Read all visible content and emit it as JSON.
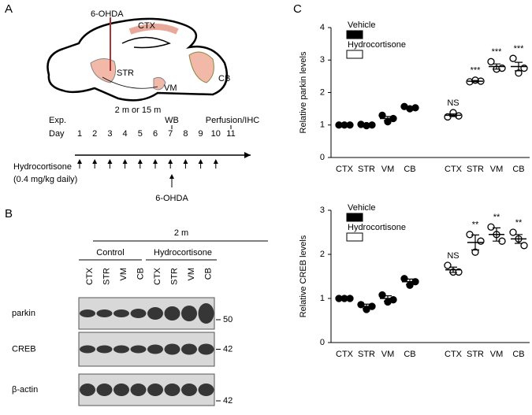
{
  "panel_labels": [
    "A",
    "B",
    "C"
  ],
  "diagram": {
    "brain_labels": {
      "injection": "6-OHDA",
      "ctx": "CTX",
      "str": "STR",
      "vm": "VM",
      "cb": "CB"
    },
    "age": "2 m or 15 m",
    "exp_label": "Exp.",
    "wb": "WB",
    "perfusion": "Perfusion/IHC",
    "day_label": "Day",
    "days": [
      "1",
      "2",
      "3",
      "4",
      "5",
      "6",
      "7",
      "8",
      "9",
      "10",
      "11"
    ],
    "treatment": "Hydrocortisone",
    "dose": "(0.4 mg/kg daily)",
    "lesion": "6-OHDA"
  },
  "blot": {
    "age": "2 m",
    "groups": [
      "Control",
      "Hydrocortisone"
    ],
    "lanes": [
      "CTX",
      "STR",
      "VM",
      "CB",
      "CTX",
      "STR",
      "VM",
      "CB"
    ],
    "rows": [
      {
        "label": "parkin",
        "marker": "50"
      },
      {
        "label": "CREB",
        "marker": "42"
      },
      {
        "label": "β-actin",
        "marker": "42"
      }
    ]
  },
  "chart_data": [
    {
      "type": "dot",
      "ylabel": "Relative parkin levels",
      "categories": [
        "CTX",
        "STR",
        "VM",
        "CB",
        "CTX",
        "STR",
        "VM",
        "CB"
      ],
      "ylim": [
        0,
        4
      ],
      "yticks": [
        0,
        1,
        2,
        3,
        4
      ],
      "series": [
        {
          "name": "Vehicle",
          "color": "#000000",
          "filled": true,
          "points": [
            [
              1,
              1,
              1
            ],
            [
              1.02,
              0.98,
              1.0
            ],
            [
              1.3,
              1.1,
              1.2
            ],
            [
              1.57,
              1.5,
              1.53
            ],
            null,
            null,
            null,
            null
          ],
          "means": [
            1,
            1,
            1.2,
            1.53,
            null,
            null,
            null,
            null
          ],
          "errors": [
            0.01,
            0.02,
            0.06,
            0.02,
            null,
            null,
            null,
            null
          ]
        },
        {
          "name": "Hydrocortisone",
          "color": "#000000",
          "filled": false,
          "points": [
            null,
            null,
            null,
            null,
            [
              1.25,
              1.38,
              1.28
            ],
            [
              2.33,
              2.38,
              2.35
            ],
            [
              2.95,
              2.72,
              2.75
            ],
            [
              3.05,
              2.6,
              2.75
            ]
          ],
          "means": [
            null,
            null,
            null,
            null,
            1.3,
            2.35,
            2.8,
            2.8
          ],
          "errors": [
            null,
            null,
            null,
            null,
            0.04,
            0.02,
            0.08,
            0.13
          ]
        }
      ],
      "annotations": [
        null,
        null,
        null,
        null,
        "NS",
        "***",
        "***",
        "***"
      ]
    },
    {
      "type": "dot",
      "ylabel": "Relative CREB levels",
      "categories": [
        "CTX",
        "STR",
        "VM",
        "CB",
        "CTX",
        "STR",
        "VM",
        "CB"
      ],
      "ylim": [
        0,
        3
      ],
      "yticks": [
        0,
        1,
        2,
        3
      ],
      "series": [
        {
          "name": "Vehicle",
          "color": "#000000",
          "filled": true,
          "points": [
            [
              1,
              1,
              1
            ],
            [
              0.86,
              0.75,
              0.82
            ],
            [
              1.08,
              0.92,
              0.97
            ],
            [
              1.45,
              1.3,
              1.38
            ],
            null,
            null,
            null,
            null
          ],
          "means": [
            1,
            0.82,
            1.0,
            1.38,
            null,
            null,
            null,
            null
          ],
          "errors": [
            0.01,
            0.05,
            0.06,
            0.06,
            null,
            null,
            null,
            null
          ]
        },
        {
          "name": "Hydrocortisone",
          "color": "#000000",
          "filled": false,
          "points": [
            null,
            null,
            null,
            null,
            [
              1.75,
              1.6,
              1.6
            ],
            [
              2.45,
              2.05,
              2.3
            ],
            [
              2.62,
              2.45,
              2.3
            ],
            [
              2.5,
              2.35,
              2.2
            ]
          ],
          "means": [
            null,
            null,
            null,
            null,
            1.65,
            2.27,
            2.45,
            2.35
          ],
          "errors": [
            null,
            null,
            null,
            null,
            0.06,
            0.17,
            0.15,
            0.1
          ]
        }
      ],
      "annotations": [
        null,
        null,
        null,
        null,
        "NS",
        "**",
        "**",
        "**"
      ]
    }
  ]
}
